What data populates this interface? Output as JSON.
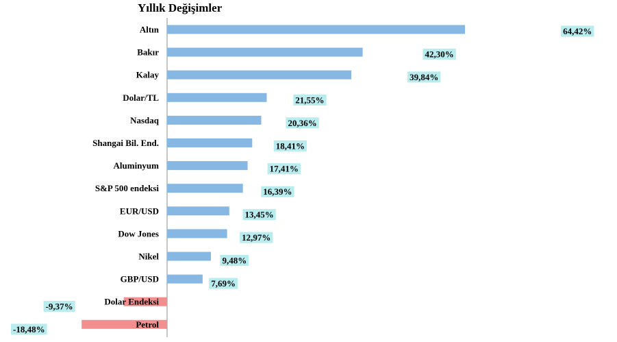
{
  "chart_data": {
    "type": "bar",
    "orientation": "horizontal",
    "title": "Yıllık Değişimler",
    "xlabel": "",
    "ylabel": "",
    "categories": [
      "Altın",
      "Bakır",
      "Kalay",
      "Dolar/TL",
      "Nasdaq",
      "Shangai Bil. End.",
      "Aluminyum",
      "S&P 500 endeksi",
      "EUR/USD",
      "Dow Jones",
      "Nikel",
      "GBP/USD",
      "Dolar Endeksi",
      "Petrol"
    ],
    "values": [
      64.42,
      42.3,
      39.84,
      21.55,
      20.36,
      18.41,
      17.41,
      16.39,
      13.45,
      12.97,
      9.48,
      7.69,
      -9.37,
      -18.48
    ],
    "value_labels": [
      "64,42%",
      "42,30%",
      "39,84%",
      "21,55%",
      "20,36%",
      "18,41%",
      "17,41%",
      "16,39%",
      "13,45%",
      "12,97%",
      "9,48%",
      "7,69%",
      "-9,37%",
      "-18,48%"
    ],
    "grid": false,
    "legend": "none",
    "colors": {
      "positive": "#86B8E3",
      "negative": "#F28E8E",
      "label_background": "#B9ECEE"
    }
  }
}
